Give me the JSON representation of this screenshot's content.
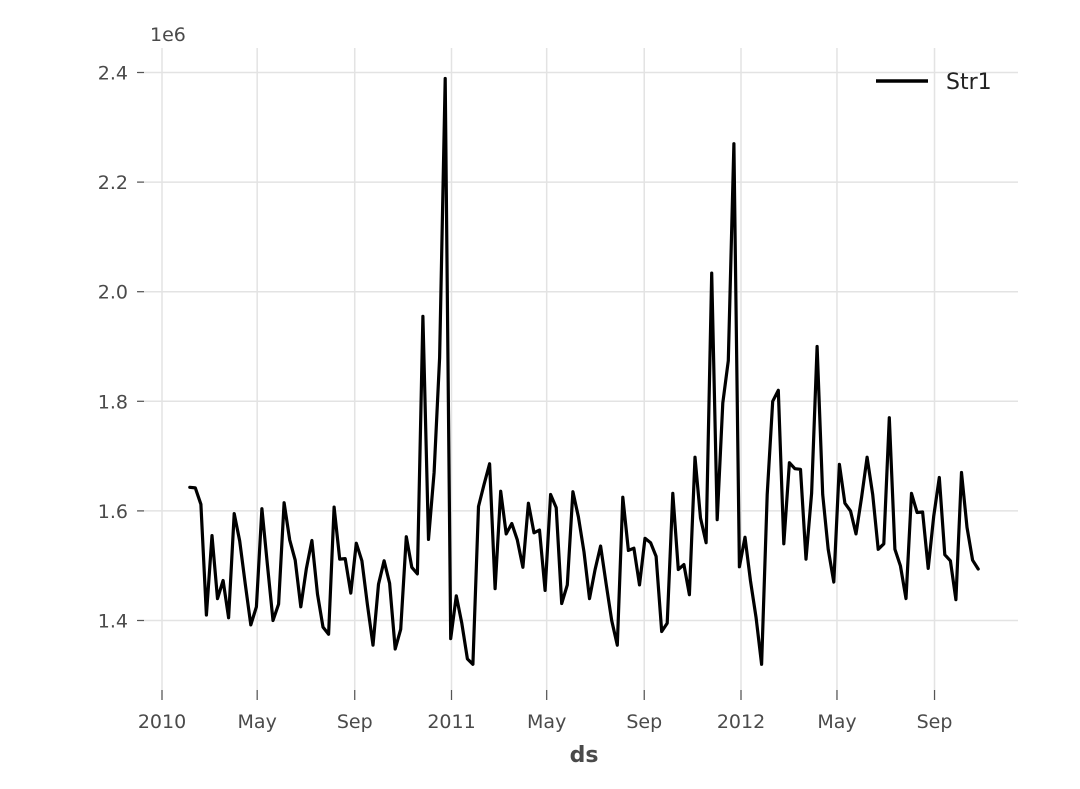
{
  "chart_data": {
    "type": "line",
    "title": "",
    "xlabel": "ds",
    "ylabel": "",
    "y_scale_label": "1e6",
    "y_scale": 1000000,
    "ylim": [
      1.26,
      2.45
    ],
    "xlim": [
      "2010-01-01",
      "2012-11-30"
    ],
    "grid": true,
    "legend_position": "top-right",
    "line_color": "#000000",
    "y_ticks": [
      1.4,
      1.6,
      1.8,
      2.0,
      2.2,
      2.4
    ],
    "y_tick_labels": [
      "1.4",
      "1.6",
      "1.8",
      "2.0",
      "2.2",
      "2.4"
    ],
    "x_ticks": [
      {
        "date": "2010-01-01",
        "label": "2010"
      },
      {
        "date": "2010-05-01",
        "label": "May"
      },
      {
        "date": "2010-09-01",
        "label": "Sep"
      },
      {
        "date": "2011-01-01",
        "label": "2011"
      },
      {
        "date": "2011-05-01",
        "label": "May"
      },
      {
        "date": "2011-09-01",
        "label": "Sep"
      },
      {
        "date": "2012-01-01",
        "label": "2012"
      },
      {
        "date": "2012-05-01",
        "label": "May"
      },
      {
        "date": "2012-09-01",
        "label": "Sep"
      }
    ],
    "series": [
      {
        "name": "Str1",
        "x": [
          "2010-02-05",
          "2010-02-12",
          "2010-02-19",
          "2010-02-26",
          "2010-03-05",
          "2010-03-12",
          "2010-03-19",
          "2010-03-26",
          "2010-04-02",
          "2010-04-09",
          "2010-04-16",
          "2010-04-23",
          "2010-04-30",
          "2010-05-07",
          "2010-05-14",
          "2010-05-21",
          "2010-05-28",
          "2010-06-04",
          "2010-06-11",
          "2010-06-18",
          "2010-06-25",
          "2010-07-02",
          "2010-07-09",
          "2010-07-16",
          "2010-07-23",
          "2010-07-30",
          "2010-08-06",
          "2010-08-13",
          "2010-08-20",
          "2010-08-27",
          "2010-09-03",
          "2010-09-10",
          "2010-09-17",
          "2010-09-24",
          "2010-10-01",
          "2010-10-08",
          "2010-10-15",
          "2010-10-22",
          "2010-10-29",
          "2010-11-05",
          "2010-11-12",
          "2010-11-19",
          "2010-11-26",
          "2010-12-03",
          "2010-12-10",
          "2010-12-17",
          "2010-12-24",
          "2010-12-31",
          "2011-01-07",
          "2011-01-14",
          "2011-01-21",
          "2011-01-28",
          "2011-02-04",
          "2011-02-11",
          "2011-02-18",
          "2011-02-25",
          "2011-03-04",
          "2011-03-11",
          "2011-03-18",
          "2011-03-25",
          "2011-04-01",
          "2011-04-08",
          "2011-04-15",
          "2011-04-22",
          "2011-04-29",
          "2011-05-06",
          "2011-05-13",
          "2011-05-20",
          "2011-05-27",
          "2011-06-03",
          "2011-06-10",
          "2011-06-17",
          "2011-06-24",
          "2011-07-01",
          "2011-07-08",
          "2011-07-15",
          "2011-07-22",
          "2011-07-29",
          "2011-08-05",
          "2011-08-12",
          "2011-08-19",
          "2011-08-26",
          "2011-09-02",
          "2011-09-09",
          "2011-09-16",
          "2011-09-23",
          "2011-09-30",
          "2011-10-07",
          "2011-10-14",
          "2011-10-21",
          "2011-10-28",
          "2011-11-04",
          "2011-11-11",
          "2011-11-18",
          "2011-11-25",
          "2011-12-02",
          "2011-12-09",
          "2011-12-16",
          "2011-12-23",
          "2011-12-30",
          "2012-01-06",
          "2012-01-13",
          "2012-01-20",
          "2012-01-27",
          "2012-02-03",
          "2012-02-10",
          "2012-02-17",
          "2012-02-24",
          "2012-03-02",
          "2012-03-09",
          "2012-03-16",
          "2012-03-23",
          "2012-03-30",
          "2012-04-06",
          "2012-04-13",
          "2012-04-20",
          "2012-04-27",
          "2012-05-04",
          "2012-05-11",
          "2012-05-18",
          "2012-05-25",
          "2012-06-01",
          "2012-06-08",
          "2012-06-15",
          "2012-06-22",
          "2012-06-29",
          "2012-07-06",
          "2012-07-13",
          "2012-07-20",
          "2012-07-27",
          "2012-08-03",
          "2012-08-10",
          "2012-08-17",
          "2012-08-24",
          "2012-08-31",
          "2012-09-07",
          "2012-09-14",
          "2012-09-21",
          "2012-09-28",
          "2012-10-05",
          "2012-10-12",
          "2012-10-19",
          "2012-10-26"
        ],
        "values": [
          1.643,
          1.642,
          1.612,
          1.41,
          1.555,
          1.44,
          1.473,
          1.405,
          1.595,
          1.545,
          1.466,
          1.392,
          1.425,
          1.604,
          1.5,
          1.4,
          1.43,
          1.615,
          1.547,
          1.51,
          1.425,
          1.495,
          1.546,
          1.448,
          1.388,
          1.375,
          1.607,
          1.512,
          1.513,
          1.45,
          1.541,
          1.509,
          1.429,
          1.355,
          1.466,
          1.509,
          1.468,
          1.348,
          1.384,
          1.553,
          1.497,
          1.485,
          1.955,
          1.548,
          1.67,
          1.879,
          2.389,
          1.367,
          1.445,
          1.395,
          1.33,
          1.32,
          1.608,
          1.648,
          1.686,
          1.458,
          1.636,
          1.558,
          1.577,
          1.547,
          1.497,
          1.614,
          1.56,
          1.565,
          1.455,
          1.63,
          1.606,
          1.431,
          1.465,
          1.635,
          1.589,
          1.525,
          1.44,
          1.493,
          1.536,
          1.466,
          1.4,
          1.355,
          1.625,
          1.528,
          1.532,
          1.465,
          1.55,
          1.542,
          1.517,
          1.38,
          1.395,
          1.632,
          1.493,
          1.502,
          1.447,
          1.698,
          1.587,
          1.542,
          2.034,
          1.584,
          1.797,
          1.874,
          2.27,
          1.498,
          1.552,
          1.472,
          1.405,
          1.32,
          1.63,
          1.8,
          1.82,
          1.54,
          1.688,
          1.677,
          1.676,
          1.512,
          1.632,
          1.9,
          1.63,
          1.53,
          1.47,
          1.685,
          1.614,
          1.6,
          1.558,
          1.625,
          1.698,
          1.63,
          1.53,
          1.54,
          1.77,
          1.53,
          1.5,
          1.44,
          1.632,
          1.597,
          1.598,
          1.495,
          1.59,
          1.661,
          1.52,
          1.509,
          1.438,
          1.67,
          1.57,
          1.51,
          1.494
        ]
      }
    ]
  }
}
